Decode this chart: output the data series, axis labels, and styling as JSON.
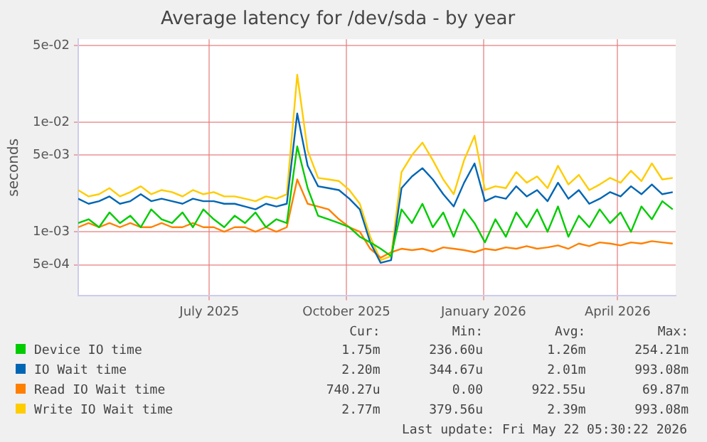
{
  "chart_data": {
    "type": "line",
    "title": "Average latency for /dev/sda - by year",
    "ylabel": "seconds",
    "x": [
      "2025-04-19",
      "2025-04-26",
      "2025-05-03",
      "2025-05-10",
      "2025-05-17",
      "2025-05-24",
      "2025-05-31",
      "2025-06-07",
      "2025-06-14",
      "2025-06-21",
      "2025-06-28",
      "2025-07-05",
      "2025-07-12",
      "2025-07-19",
      "2025-07-26",
      "2025-08-02",
      "2025-08-09",
      "2025-08-16",
      "2025-08-23",
      "2025-08-30",
      "2025-09-06",
      "2025-09-13",
      "2025-09-20",
      "2025-09-27",
      "2025-10-04",
      "2025-10-11",
      "2025-10-18",
      "2025-10-25",
      "2025-11-01",
      "2025-11-08",
      "2025-11-15",
      "2025-11-22",
      "2025-11-29",
      "2025-12-06",
      "2025-12-13",
      "2025-12-20",
      "2025-12-27",
      "2026-01-03",
      "2026-01-10",
      "2026-01-17",
      "2026-01-24",
      "2026-01-31",
      "2026-02-07",
      "2026-02-14",
      "2026-02-21",
      "2026-02-28",
      "2026-03-07",
      "2026-03-14",
      "2026-03-21",
      "2026-03-28",
      "2026-04-04",
      "2026-04-11",
      "2026-04-18",
      "2026-04-25",
      "2026-05-02",
      "2026-05-09",
      "2026-05-16",
      "2026-05-23"
    ],
    "series": [
      {
        "name": "Device IO time",
        "color": "#00cc00",
        "values": [
          0.0012,
          0.0013,
          0.0011,
          0.0015,
          0.0012,
          0.0014,
          0.0011,
          0.0016,
          0.0013,
          0.0012,
          0.0015,
          0.0011,
          0.0016,
          0.0013,
          0.0011,
          0.0014,
          0.0012,
          0.0015,
          0.0011,
          0.0013,
          0.0012,
          0.006,
          0.0025,
          0.0014,
          0.0013,
          0.0012,
          0.0011,
          0.0009,
          0.0008,
          0.0007,
          0.0006,
          0.0016,
          0.0012,
          0.0018,
          0.0011,
          0.0015,
          0.0009,
          0.0016,
          0.0012,
          0.0008,
          0.0013,
          0.0009,
          0.0015,
          0.0011,
          0.0016,
          0.001,
          0.0017,
          0.0009,
          0.0014,
          0.0011,
          0.0016,
          0.0012,
          0.0015,
          0.001,
          0.0017,
          0.0013,
          0.0019,
          0.0016
        ]
      },
      {
        "name": "IO Wait time",
        "color": "#0066b3",
        "values": [
          0.002,
          0.0018,
          0.0019,
          0.0021,
          0.0018,
          0.0019,
          0.0022,
          0.0019,
          0.002,
          0.0019,
          0.0018,
          0.002,
          0.0019,
          0.0019,
          0.0018,
          0.0018,
          0.0017,
          0.0016,
          0.0018,
          0.0017,
          0.0018,
          0.012,
          0.004,
          0.0026,
          0.0025,
          0.0024,
          0.002,
          0.0016,
          0.0008,
          0.00052,
          0.00055,
          0.0025,
          0.0032,
          0.0038,
          0.003,
          0.0022,
          0.0017,
          0.0028,
          0.0042,
          0.0019,
          0.0021,
          0.002,
          0.0026,
          0.0021,
          0.0024,
          0.0019,
          0.0028,
          0.002,
          0.0024,
          0.0018,
          0.002,
          0.0023,
          0.0021,
          0.0026,
          0.0022,
          0.0027,
          0.0022,
          0.0023
        ]
      },
      {
        "name": "Read IO Wait time",
        "color": "#ff8000",
        "values": [
          0.0011,
          0.0012,
          0.0011,
          0.0012,
          0.0011,
          0.0012,
          0.0011,
          0.0011,
          0.0012,
          0.0011,
          0.0011,
          0.0012,
          0.0011,
          0.0011,
          0.001,
          0.0011,
          0.0011,
          0.001,
          0.0011,
          0.001,
          0.0011,
          0.003,
          0.0018,
          0.0017,
          0.0016,
          0.0013,
          0.0011,
          0.001,
          0.0007,
          0.00058,
          0.00065,
          0.0007,
          0.00068,
          0.0007,
          0.00066,
          0.00072,
          0.0007,
          0.00068,
          0.00065,
          0.0007,
          0.00068,
          0.00072,
          0.0007,
          0.00074,
          0.0007,
          0.00072,
          0.00075,
          0.0007,
          0.00078,
          0.00074,
          0.0008,
          0.00078,
          0.00075,
          0.0008,
          0.00078,
          0.00082,
          0.0008,
          0.00078
        ]
      },
      {
        "name": "Write IO Wait time",
        "color": "#ffcc00",
        "values": [
          0.0024,
          0.0021,
          0.0022,
          0.0025,
          0.0021,
          0.0023,
          0.0026,
          0.0022,
          0.0024,
          0.0023,
          0.0021,
          0.0024,
          0.0022,
          0.0023,
          0.0021,
          0.0021,
          0.002,
          0.0019,
          0.0021,
          0.002,
          0.0022,
          0.027,
          0.0055,
          0.0031,
          0.003,
          0.0029,
          0.0024,
          0.0018,
          0.0009,
          0.00055,
          0.0006,
          0.0035,
          0.005,
          0.0065,
          0.0045,
          0.003,
          0.0022,
          0.0045,
          0.0075,
          0.0024,
          0.0026,
          0.0025,
          0.0035,
          0.0028,
          0.0032,
          0.0025,
          0.004,
          0.0027,
          0.0033,
          0.0024,
          0.0027,
          0.0031,
          0.0028,
          0.0036,
          0.0029,
          0.0042,
          0.003,
          0.0031
        ]
      }
    ],
    "xlim": [
      "2025-04-19",
      "2026-05-25"
    ],
    "xticks": [
      {
        "value": "2025-07-16",
        "label": "July 2025"
      },
      {
        "value": "2025-10-16",
        "label": "October 2025"
      },
      {
        "value": "2026-01-16",
        "label": "January 2026"
      },
      {
        "value": "2026-04-16",
        "label": "April 2026"
      }
    ],
    "ylim": [
      0.00026,
      0.057
    ],
    "yticks": [
      {
        "value": 0.0005,
        "label": "5e-04"
      },
      {
        "value": 0.001,
        "label": "1e-03"
      },
      {
        "value": 0.005,
        "label": "5e-03"
      },
      {
        "value": 0.01,
        "label": "1e-02"
      },
      {
        "value": 0.05,
        "label": "5e-02"
      }
    ],
    "log": "y",
    "grid": true,
    "legend": "bottom",
    "marker": "none",
    "line_style": "solid",
    "annotations": [
      "Cur:",
      "Min:",
      "Avg:",
      "Max:",
      "1.75m",
      "236.60u",
      "1.26m",
      "254.21m",
      "2.20m",
      "344.67u",
      "2.01m",
      "993.08m",
      "740.27u",
      "0.00",
      "922.55u",
      "69.87m",
      "2.77m",
      "379.56u",
      "2.39m",
      "993.08m",
      "Last update: Fri May 22 05:30:22 2026"
    ]
  }
}
